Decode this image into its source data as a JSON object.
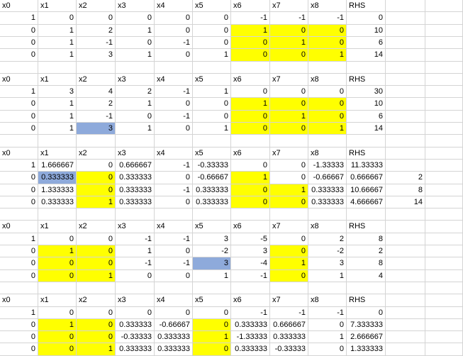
{
  "colors": {
    "highlight": "#ffff00",
    "pivot": "#8eaadb",
    "grid": "#d4d4d4"
  },
  "rows": [
    [
      {
        "v": "x0",
        "t": "s"
      },
      {
        "v": "x1",
        "t": "s"
      },
      {
        "v": "x2",
        "t": "s"
      },
      {
        "v": "x3",
        "t": "s"
      },
      {
        "v": "x4",
        "t": "s"
      },
      {
        "v": "x5",
        "t": "s"
      },
      {
        "v": "x6",
        "t": "s"
      },
      {
        "v": "x7",
        "t": "s"
      },
      {
        "v": "x8",
        "t": "s"
      },
      {
        "v": "RHS",
        "t": "s"
      },
      {
        "v": ""
      }
    ],
    [
      {
        "v": "1"
      },
      {
        "v": "0"
      },
      {
        "v": "0"
      },
      {
        "v": "0"
      },
      {
        "v": "0"
      },
      {
        "v": "0"
      },
      {
        "v": "-1"
      },
      {
        "v": "-1"
      },
      {
        "v": "-1"
      },
      {
        "v": "0"
      },
      {
        "v": ""
      }
    ],
    [
      {
        "v": "0"
      },
      {
        "v": "1"
      },
      {
        "v": "2"
      },
      {
        "v": "1"
      },
      {
        "v": "0"
      },
      {
        "v": "0"
      },
      {
        "v": "1",
        "hl": "y"
      },
      {
        "v": "0",
        "hl": "y"
      },
      {
        "v": "0",
        "hl": "y"
      },
      {
        "v": "10"
      },
      {
        "v": ""
      }
    ],
    [
      {
        "v": "0"
      },
      {
        "v": "1"
      },
      {
        "v": "-1"
      },
      {
        "v": "0"
      },
      {
        "v": "-1"
      },
      {
        "v": "0"
      },
      {
        "v": "0",
        "hl": "y"
      },
      {
        "v": "1",
        "hl": "y"
      },
      {
        "v": "0",
        "hl": "y"
      },
      {
        "v": "6"
      },
      {
        "v": ""
      }
    ],
    [
      {
        "v": "0"
      },
      {
        "v": "1"
      },
      {
        "v": "3"
      },
      {
        "v": "1"
      },
      {
        "v": "0"
      },
      {
        "v": "1"
      },
      {
        "v": "0",
        "hl": "y"
      },
      {
        "v": "0",
        "hl": "y"
      },
      {
        "v": "1",
        "hl": "y"
      },
      {
        "v": "14"
      },
      {
        "v": ""
      }
    ],
    [
      {
        "v": ""
      },
      {
        "v": ""
      },
      {
        "v": ""
      },
      {
        "v": ""
      },
      {
        "v": ""
      },
      {
        "v": ""
      },
      {
        "v": ""
      },
      {
        "v": ""
      },
      {
        "v": ""
      },
      {
        "v": ""
      },
      {
        "v": ""
      }
    ],
    [
      {
        "v": "x0",
        "t": "s"
      },
      {
        "v": "x1",
        "t": "s"
      },
      {
        "v": "x2",
        "t": "s"
      },
      {
        "v": "x3",
        "t": "s"
      },
      {
        "v": "x4",
        "t": "s"
      },
      {
        "v": "x5",
        "t": "s"
      },
      {
        "v": "x6",
        "t": "s"
      },
      {
        "v": "x7",
        "t": "s"
      },
      {
        "v": "x8",
        "t": "s"
      },
      {
        "v": "RHS",
        "t": "s"
      },
      {
        "v": ""
      }
    ],
    [
      {
        "v": "1"
      },
      {
        "v": "3"
      },
      {
        "v": "4"
      },
      {
        "v": "2"
      },
      {
        "v": "-1"
      },
      {
        "v": "1"
      },
      {
        "v": "0"
      },
      {
        "v": "0"
      },
      {
        "v": "0"
      },
      {
        "v": "30"
      },
      {
        "v": ""
      }
    ],
    [
      {
        "v": "0"
      },
      {
        "v": "1"
      },
      {
        "v": "2"
      },
      {
        "v": "1"
      },
      {
        "v": "0"
      },
      {
        "v": "0"
      },
      {
        "v": "1",
        "hl": "y"
      },
      {
        "v": "0",
        "hl": "y"
      },
      {
        "v": "0",
        "hl": "y"
      },
      {
        "v": "10"
      },
      {
        "v": ""
      }
    ],
    [
      {
        "v": "0"
      },
      {
        "v": "1"
      },
      {
        "v": "-1"
      },
      {
        "v": "0"
      },
      {
        "v": "-1"
      },
      {
        "v": "0"
      },
      {
        "v": "0",
        "hl": "y"
      },
      {
        "v": "1",
        "hl": "y"
      },
      {
        "v": "0",
        "hl": "y"
      },
      {
        "v": "6"
      },
      {
        "v": ""
      }
    ],
    [
      {
        "v": "0"
      },
      {
        "v": "1"
      },
      {
        "v": "3",
        "hl": "b"
      },
      {
        "v": "1"
      },
      {
        "v": "0"
      },
      {
        "v": "1"
      },
      {
        "v": "0",
        "hl": "y"
      },
      {
        "v": "0",
        "hl": "y"
      },
      {
        "v": "1",
        "hl": "y"
      },
      {
        "v": "14"
      },
      {
        "v": ""
      }
    ],
    [
      {
        "v": ""
      },
      {
        "v": ""
      },
      {
        "v": ""
      },
      {
        "v": ""
      },
      {
        "v": ""
      },
      {
        "v": ""
      },
      {
        "v": ""
      },
      {
        "v": ""
      },
      {
        "v": ""
      },
      {
        "v": ""
      },
      {
        "v": ""
      }
    ],
    [
      {
        "v": "x0",
        "t": "s"
      },
      {
        "v": "x1",
        "t": "s"
      },
      {
        "v": "x2",
        "t": "s"
      },
      {
        "v": "x3",
        "t": "s"
      },
      {
        "v": "x4",
        "t": "s"
      },
      {
        "v": "x5",
        "t": "s"
      },
      {
        "v": "x6",
        "t": "s"
      },
      {
        "v": "x7",
        "t": "s"
      },
      {
        "v": "x8",
        "t": "s"
      },
      {
        "v": "RHS",
        "t": "s"
      },
      {
        "v": ""
      }
    ],
    [
      {
        "v": "1"
      },
      {
        "v": "1.666667"
      },
      {
        "v": "0"
      },
      {
        "v": "0.666667"
      },
      {
        "v": "-1"
      },
      {
        "v": "-0.33333"
      },
      {
        "v": "0"
      },
      {
        "v": "0"
      },
      {
        "v": "-1.33333"
      },
      {
        "v": "11.33333"
      },
      {
        "v": ""
      }
    ],
    [
      {
        "v": "0"
      },
      {
        "v": "0.333333",
        "hl": "b"
      },
      {
        "v": "0",
        "hl": "y"
      },
      {
        "v": "0.333333"
      },
      {
        "v": "0"
      },
      {
        "v": "-0.66667"
      },
      {
        "v": "1",
        "hl": "y"
      },
      {
        "v": "0"
      },
      {
        "v": "-0.66667"
      },
      {
        "v": "0.666667"
      },
      {
        "v": "2"
      }
    ],
    [
      {
        "v": "0"
      },
      {
        "v": "1.333333"
      },
      {
        "v": "0",
        "hl": "y"
      },
      {
        "v": "0.333333"
      },
      {
        "v": "-1"
      },
      {
        "v": "0.333333"
      },
      {
        "v": "0",
        "hl": "y"
      },
      {
        "v": "1",
        "hl": "y"
      },
      {
        "v": "0.333333"
      },
      {
        "v": "10.66667"
      },
      {
        "v": "8"
      }
    ],
    [
      {
        "v": "0"
      },
      {
        "v": "0.333333"
      },
      {
        "v": "1",
        "hl": "y"
      },
      {
        "v": "0.333333"
      },
      {
        "v": "0"
      },
      {
        "v": "0.333333"
      },
      {
        "v": "0",
        "hl": "y"
      },
      {
        "v": "0",
        "hl": "y"
      },
      {
        "v": "0.333333"
      },
      {
        "v": "4.666667"
      },
      {
        "v": "14"
      }
    ],
    [
      {
        "v": ""
      },
      {
        "v": ""
      },
      {
        "v": ""
      },
      {
        "v": ""
      },
      {
        "v": ""
      },
      {
        "v": ""
      },
      {
        "v": ""
      },
      {
        "v": ""
      },
      {
        "v": ""
      },
      {
        "v": ""
      },
      {
        "v": ""
      }
    ],
    [
      {
        "v": "x0",
        "t": "s"
      },
      {
        "v": "x1",
        "t": "s"
      },
      {
        "v": "x2",
        "t": "s"
      },
      {
        "v": "x3",
        "t": "s"
      },
      {
        "v": "x4",
        "t": "s"
      },
      {
        "v": "x5",
        "t": "s"
      },
      {
        "v": "x6",
        "t": "s"
      },
      {
        "v": "x7",
        "t": "s"
      },
      {
        "v": "x8",
        "t": "s"
      },
      {
        "v": "RHS",
        "t": "s"
      },
      {
        "v": ""
      }
    ],
    [
      {
        "v": "1"
      },
      {
        "v": "0"
      },
      {
        "v": "0"
      },
      {
        "v": "-1"
      },
      {
        "v": "-1"
      },
      {
        "v": "3"
      },
      {
        "v": "-5"
      },
      {
        "v": "0"
      },
      {
        "v": "2"
      },
      {
        "v": "8"
      },
      {
        "v": ""
      }
    ],
    [
      {
        "v": "0"
      },
      {
        "v": "1",
        "hl": "y"
      },
      {
        "v": "0",
        "hl": "y"
      },
      {
        "v": "1"
      },
      {
        "v": "0"
      },
      {
        "v": "-2"
      },
      {
        "v": "3"
      },
      {
        "v": "0",
        "hl": "y"
      },
      {
        "v": "-2"
      },
      {
        "v": "2"
      },
      {
        "v": ""
      }
    ],
    [
      {
        "v": "0"
      },
      {
        "v": "0",
        "hl": "y"
      },
      {
        "v": "0",
        "hl": "y"
      },
      {
        "v": "-1"
      },
      {
        "v": "-1"
      },
      {
        "v": "3",
        "hl": "b"
      },
      {
        "v": "-4"
      },
      {
        "v": "1",
        "hl": "y"
      },
      {
        "v": "3"
      },
      {
        "v": "8"
      },
      {
        "v": ""
      }
    ],
    [
      {
        "v": "0"
      },
      {
        "v": "0",
        "hl": "y"
      },
      {
        "v": "1",
        "hl": "y"
      },
      {
        "v": "0"
      },
      {
        "v": "0"
      },
      {
        "v": "1"
      },
      {
        "v": "-1"
      },
      {
        "v": "0",
        "hl": "y"
      },
      {
        "v": "1"
      },
      {
        "v": "4"
      },
      {
        "v": ""
      }
    ],
    [
      {
        "v": ""
      },
      {
        "v": ""
      },
      {
        "v": ""
      },
      {
        "v": ""
      },
      {
        "v": ""
      },
      {
        "v": ""
      },
      {
        "v": ""
      },
      {
        "v": ""
      },
      {
        "v": ""
      },
      {
        "v": ""
      },
      {
        "v": ""
      }
    ],
    [
      {
        "v": "x0",
        "t": "s"
      },
      {
        "v": "x1",
        "t": "s"
      },
      {
        "v": "x2",
        "t": "s"
      },
      {
        "v": "x3",
        "t": "s"
      },
      {
        "v": "x4",
        "t": "s"
      },
      {
        "v": "x5",
        "t": "s"
      },
      {
        "v": "x6",
        "t": "s"
      },
      {
        "v": "x7",
        "t": "s"
      },
      {
        "v": "x8",
        "t": "s"
      },
      {
        "v": "RHS",
        "t": "s"
      },
      {
        "v": ""
      }
    ],
    [
      {
        "v": "1"
      },
      {
        "v": "0"
      },
      {
        "v": "0"
      },
      {
        "v": "0"
      },
      {
        "v": "0"
      },
      {
        "v": "0"
      },
      {
        "v": "-1"
      },
      {
        "v": "-1"
      },
      {
        "v": "-1"
      },
      {
        "v": "0"
      },
      {
        "v": ""
      }
    ],
    [
      {
        "v": "0"
      },
      {
        "v": "1",
        "hl": "y"
      },
      {
        "v": "0",
        "hl": "y"
      },
      {
        "v": "0.333333"
      },
      {
        "v": "-0.66667"
      },
      {
        "v": "0",
        "hl": "y"
      },
      {
        "v": "0.333333"
      },
      {
        "v": "0.666667"
      },
      {
        "v": "0"
      },
      {
        "v": "7.333333"
      },
      {
        "v": ""
      }
    ],
    [
      {
        "v": "0"
      },
      {
        "v": "0",
        "hl": "y"
      },
      {
        "v": "0",
        "hl": "y"
      },
      {
        "v": "-0.33333"
      },
      {
        "v": "0.333333"
      },
      {
        "v": "1",
        "hl": "y"
      },
      {
        "v": "-1.33333"
      },
      {
        "v": "0.333333"
      },
      {
        "v": "1"
      },
      {
        "v": "2.666667"
      },
      {
        "v": ""
      }
    ],
    [
      {
        "v": "0"
      },
      {
        "v": "0",
        "hl": "y"
      },
      {
        "v": "1",
        "hl": "y"
      },
      {
        "v": "0.333333"
      },
      {
        "v": "0.333333"
      },
      {
        "v": "0",
        "hl": "y"
      },
      {
        "v": "0.333333"
      },
      {
        "v": "-0.33333"
      },
      {
        "v": "0"
      },
      {
        "v": "1.333333"
      },
      {
        "v": ""
      }
    ]
  ]
}
